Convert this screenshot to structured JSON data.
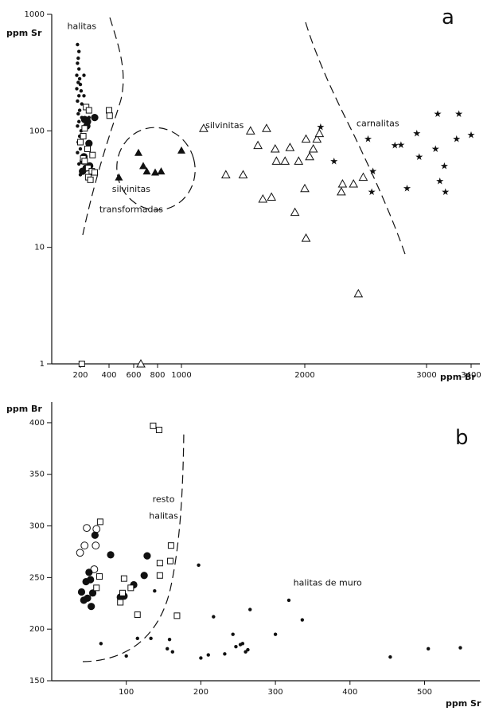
{
  "chart_data": [
    {
      "type": "scatter",
      "panel_letter": "a",
      "xlabel": "ppm Br",
      "ylabel": "ppm Sr",
      "xscale": "linear",
      "yscale": "log",
      "xlim": [
        0,
        3450
      ],
      "ylim": [
        1,
        1000
      ],
      "xticks": [
        200,
        400,
        600,
        800,
        1000,
        2000,
        3000,
        3400
      ],
      "xtick_labels": [
        "200",
        "400",
        "600",
        "800",
        "1000",
        "2000",
        "3000",
        "3400"
      ],
      "yticks": [
        1,
        10,
        100,
        1000
      ],
      "ytick_labels": [
        "1",
        "10",
        "100",
        "1000"
      ],
      "grid": false,
      "annotations": [
        {
          "text": "halitas",
          "x": 210,
          "y": 750
        },
        {
          "text": "silvinitas",
          "x": 1350,
          "y": 105
        },
        {
          "text": "carnalitas",
          "x": 2600,
          "y": 110
        },
        {
          "text": "silvinitas",
          "x": 580,
          "y": 30
        },
        {
          "text": "transformadas",
          "x": 580,
          "y": 20
        }
      ],
      "series": [
        {
          "marker": "dot-small",
          "points": [
            [
              180,
              550
            ],
            [
              190,
              480
            ],
            [
              185,
              420
            ],
            [
              180,
              380
            ],
            [
              190,
              340
            ],
            [
              175,
              300
            ],
            [
              195,
              280
            ],
            [
              185,
              260
            ],
            [
              200,
              250
            ],
            [
              175,
              230
            ],
            [
              205,
              220
            ],
            [
              190,
              200
            ],
            [
              180,
              180
            ],
            [
              210,
              170
            ],
            [
              195,
              150
            ],
            [
              185,
              140
            ],
            [
              210,
              130
            ],
            [
              190,
              120
            ],
            [
              180,
              110
            ],
            [
              205,
              100
            ],
            [
              195,
              90
            ],
            [
              185,
              80
            ],
            [
              200,
              70
            ],
            [
              210,
              60
            ],
            [
              190,
              52
            ],
            [
              215,
              46
            ],
            [
              200,
              42
            ],
            [
              225,
              300
            ],
            [
              225,
              200
            ],
            [
              260,
              130
            ],
            [
              180,
              65
            ]
          ]
        },
        {
          "marker": "dot-large",
          "points": [
            [
              230,
              125
            ],
            [
              250,
              120
            ],
            [
              300,
              130
            ],
            [
              260,
              78
            ],
            [
              220,
              55
            ],
            [
              240,
              48
            ],
            [
              215,
              45
            ],
            [
              265,
              50
            ],
            [
              225,
              60
            ],
            [
              245,
              110
            ]
          ]
        },
        {
          "marker": "square-open",
          "points": [
            [
              240,
              160
            ],
            [
              260,
              150
            ],
            [
              230,
              105
            ],
            [
              220,
              90
            ],
            [
              200,
              80
            ],
            [
              250,
              70
            ],
            [
              285,
              62
            ],
            [
              220,
              58
            ],
            [
              230,
              55
            ],
            [
              255,
              48
            ],
            [
              280,
              45
            ],
            [
              255,
              40
            ],
            [
              270,
              38
            ],
            [
              300,
              44
            ],
            [
              400,
              150
            ],
            [
              405,
              135
            ],
            [
              210,
              1
            ]
          ]
        },
        {
          "marker": "triangle-filled",
          "points": [
            [
              480,
              40
            ],
            [
              640,
              65
            ],
            [
              680,
              50
            ],
            [
              710,
              45
            ],
            [
              780,
              44
            ],
            [
              830,
              45
            ],
            [
              1000,
              68
            ]
          ]
        },
        {
          "marker": "triangle-open",
          "points": [
            [
              660,
              1
            ],
            [
              1180,
              105
            ],
            [
              1360,
              42
            ],
            [
              1500,
              42
            ],
            [
              1560,
              100
            ],
            [
              1620,
              75
            ],
            [
              1660,
              26
            ],
            [
              1690,
              105
            ],
            [
              1730,
              27
            ],
            [
              1760,
              70
            ],
            [
              1770,
              55
            ],
            [
              1840,
              55
            ],
            [
              1880,
              72
            ],
            [
              1920,
              20
            ],
            [
              1950,
              55
            ],
            [
              2010,
              85
            ],
            [
              2000,
              32
            ],
            [
              2010,
              12
            ],
            [
              2040,
              60
            ],
            [
              2070,
              70
            ],
            [
              2100,
              85
            ],
            [
              2120,
              95
            ],
            [
              2300,
              30
            ],
            [
              2310,
              35
            ],
            [
              2400,
              35
            ],
            [
              2440,
              4
            ],
            [
              2480,
              40
            ]
          ]
        },
        {
          "marker": "star",
          "points": [
            [
              2130,
              108
            ],
            [
              2240,
              55
            ],
            [
              2520,
              85
            ],
            [
              2550,
              30
            ],
            [
              2560,
              45
            ],
            [
              2740,
              75
            ],
            [
              2790,
              76
            ],
            [
              2840,
              32
            ],
            [
              2920,
              95
            ],
            [
              2940,
              60
            ],
            [
              3080,
              70
            ],
            [
              3100,
              140
            ],
            [
              3120,
              37
            ],
            [
              3160,
              50
            ],
            [
              3170,
              30
            ],
            [
              3290,
              140
            ],
            [
              3270,
              85
            ],
            [
              3400,
              92
            ]
          ]
        }
      ]
    },
    {
      "type": "scatter",
      "panel_letter": "b",
      "xlabel": "ppm Sr",
      "ylabel": "ppm Br",
      "xlim": [
        0,
        590
      ],
      "ylim": [
        150,
        420
      ],
      "xticks": [
        100,
        200,
        300,
        400,
        500
      ],
      "xtick_labels": [
        "100",
        "200",
        "300",
        "400",
        "500"
      ],
      "yticks": [
        150,
        200,
        250,
        300,
        350,
        400
      ],
      "ytick_labels": [
        "150",
        "200",
        "250",
        "300",
        "350",
        "400"
      ],
      "grid": false,
      "annotations": [
        {
          "text": "resto",
          "x": 150,
          "y": 323
        },
        {
          "text": "halitas",
          "x": 150,
          "y": 307
        },
        {
          "text": "halitas de muro",
          "x": 370,
          "y": 242
        }
      ],
      "series": [
        {
          "marker": "circle-open",
          "points": [
            [
              38,
              274
            ],
            [
              44,
              281
            ],
            [
              47,
              298
            ],
            [
              59,
              281
            ],
            [
              60,
              297
            ],
            [
              57,
              258
            ]
          ]
        },
        {
          "marker": "dot-large",
          "points": [
            [
              58,
              291
            ],
            [
              79,
              272
            ],
            [
              46,
              246
            ],
            [
              50,
              255
            ],
            [
              40,
              236
            ],
            [
              52,
              248
            ],
            [
              43,
              228
            ],
            [
              48,
              230
            ],
            [
              55,
              235
            ],
            [
              53,
              222
            ],
            [
              92,
              231
            ],
            [
              97,
              232
            ],
            [
              110,
              243
            ],
            [
              124,
              252
            ],
            [
              128,
              271
            ]
          ]
        },
        {
          "marker": "square-open",
          "points": [
            [
              136,
              397
            ],
            [
              144,
              393
            ],
            [
              65,
              304
            ],
            [
              160,
              281
            ],
            [
              159,
              266
            ],
            [
              145,
              264
            ],
            [
              145,
              252
            ],
            [
              64,
              251
            ],
            [
              97,
              249
            ],
            [
              106,
              240
            ],
            [
              95,
              235
            ],
            [
              92,
              226
            ],
            [
              115,
              214
            ],
            [
              168,
              213
            ],
            [
              60,
              240
            ]
          ]
        },
        {
          "marker": "dot-small",
          "points": [
            [
              197,
              262
            ],
            [
              138,
              237
            ],
            [
              66,
              186
            ],
            [
              115,
              191
            ],
            [
              133,
              191
            ],
            [
              155,
              181
            ],
            [
              158,
              190
            ],
            [
              162,
              178
            ],
            [
              100,
              174
            ],
            [
              200,
              172
            ],
            [
              210,
              175
            ],
            [
              217,
              212
            ],
            [
              232,
              176
            ],
            [
              243,
              195
            ],
            [
              247,
              183
            ],
            [
              253,
              185
            ],
            [
              256,
              186
            ],
            [
              260,
              178
            ],
            [
              263,
              180
            ],
            [
              266,
              219
            ],
            [
              300,
              195
            ],
            [
              318,
              228
            ],
            [
              336,
              209
            ],
            [
              454,
              173
            ],
            [
              505,
              181
            ],
            [
              548,
              182
            ]
          ]
        }
      ]
    }
  ]
}
